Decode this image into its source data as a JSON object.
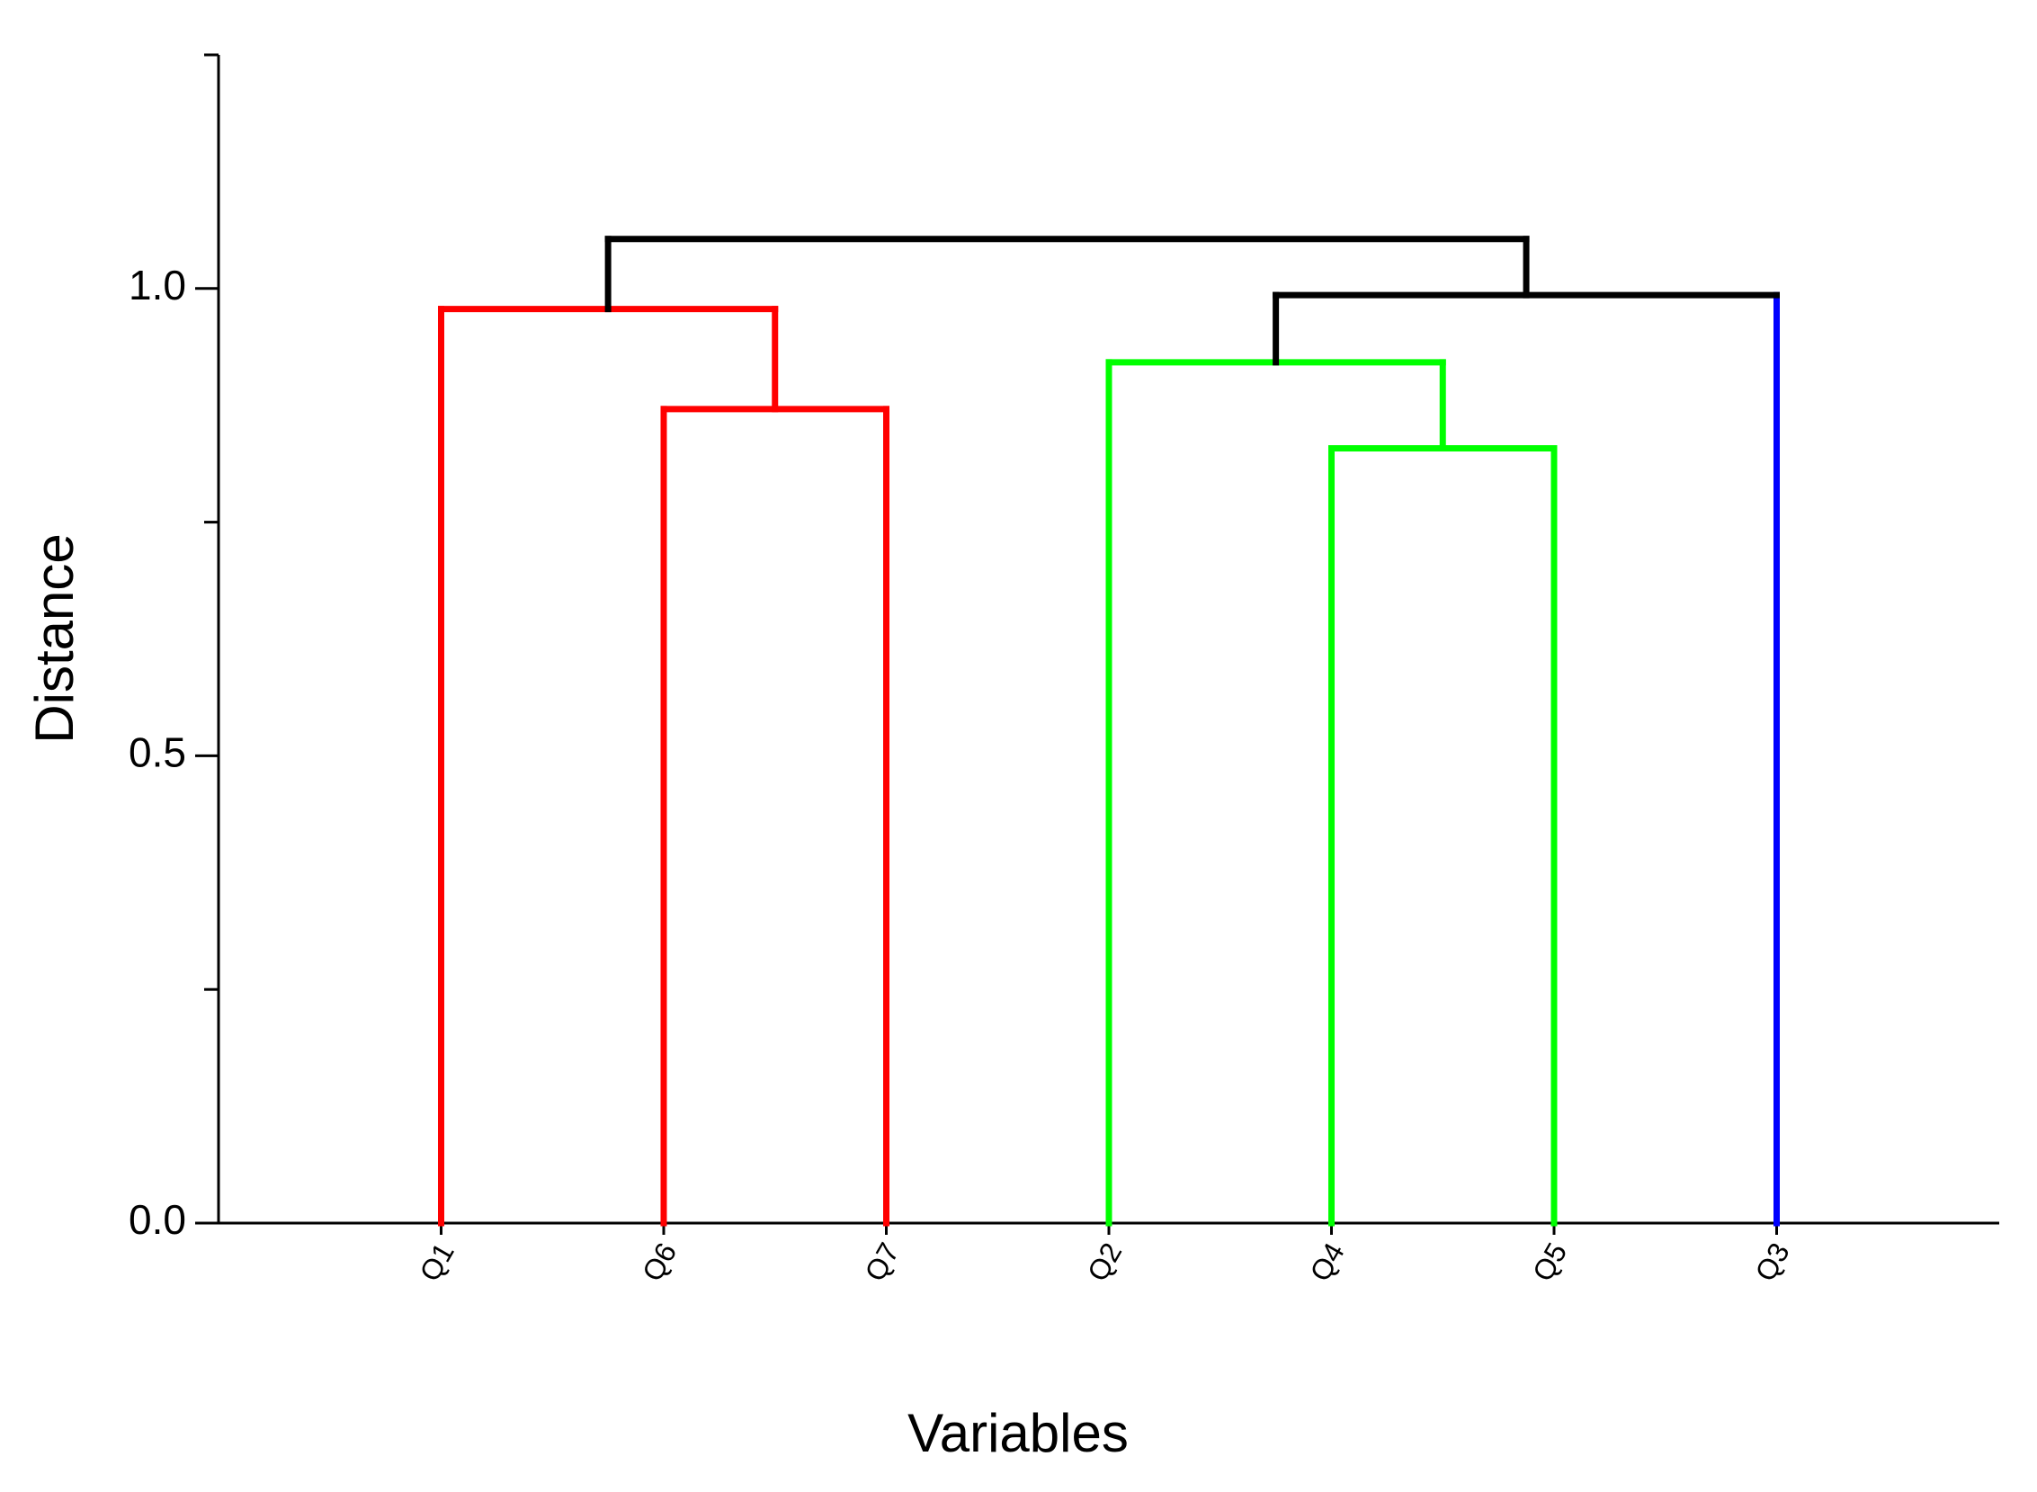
{
  "chart_data": {
    "type": "dendrogram",
    "x_label": "Variables",
    "y_label": "Distance",
    "leaves": [
      {
        "label": "Q1",
        "color": "#ff0000"
      },
      {
        "label": "Q6",
        "color": "#ff0000"
      },
      {
        "label": "Q7",
        "color": "#ff0000"
      },
      {
        "label": "Q2",
        "color": "#00ff00"
      },
      {
        "label": "Q4",
        "color": "#00ff00"
      },
      {
        "label": "Q5",
        "color": "#00ff00"
      },
      {
        "label": "Q3",
        "color": "#0000ff"
      }
    ],
    "links": [
      {
        "children": [
          1,
          2
        ],
        "height": 0.871,
        "color": "#ff0000"
      },
      {
        "children": [
          0,
          7
        ],
        "height": 0.978,
        "color": "#ff0000"
      },
      {
        "children": [
          4,
          5
        ],
        "height": 0.829,
        "color": "#00ff00"
      },
      {
        "children": [
          3,
          9
        ],
        "height": 0.921,
        "color": "#00ff00"
      },
      {
        "children": [
          10,
          6
        ],
        "height": 0.993,
        "color": "#000000"
      },
      {
        "children": [
          8,
          11
        ],
        "height": 1.053,
        "color": "#000000"
      }
    ],
    "ylim": [
      0,
      1.25
    ],
    "yticks": [
      {
        "value": 0,
        "label": "0.0"
      },
      {
        "value": 0.5,
        "label": "0.5"
      },
      {
        "value": 1,
        "label": "1.0"
      }
    ],
    "minor_yticks": [
      0.25,
      0.75,
      1.25
    ]
  }
}
